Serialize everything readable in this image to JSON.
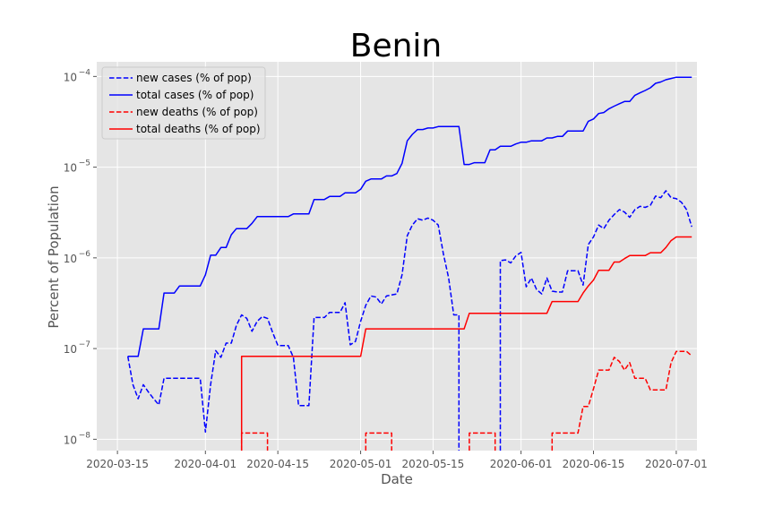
{
  "chart_data": {
    "type": "line",
    "title": "Benin",
    "xlabel": "Date",
    "ylabel": "Percent of Population",
    "yscale": "log",
    "ylim": [
      7.5e-09,
      0.000145
    ],
    "xlim": [
      "2020-03-11",
      "2020-07-05"
    ],
    "x_ticks": [
      "2020-03-15",
      "2020-04-01",
      "2020-04-15",
      "2020-05-01",
      "2020-05-15",
      "2020-06-01",
      "2020-06-15",
      "2020-07-01"
    ],
    "y_ticks": [
      {
        "value": 1e-08,
        "base": "10",
        "exp": "−8"
      },
      {
        "value": 1e-07,
        "base": "10",
        "exp": "−7"
      },
      {
        "value": 1e-06,
        "base": "10",
        "exp": "−6"
      },
      {
        "value": 1e-05,
        "base": "10",
        "exp": "−5"
      },
      {
        "value": 0.0001,
        "base": "10",
        "exp": "−4"
      }
    ],
    "grid": true,
    "legend_position": "top-left",
    "series": [
      {
        "name": "new cases (% of pop)",
        "color": "#0000ff",
        "dash": "dashed",
        "points": [
          [
            "2020-03-17",
            8.2e-08
          ],
          [
            "2020-03-18",
            4e-08
          ],
          [
            "2020-03-19",
            2.8e-08
          ],
          [
            "2020-03-20",
            4e-08
          ],
          [
            "2020-03-21",
            3.3e-08
          ],
          [
            "2020-03-22",
            2.8e-08
          ],
          [
            "2020-03-23",
            2.4e-08
          ],
          [
            "2020-03-24",
            4.7e-08
          ],
          [
            "2020-03-25",
            4.7e-08
          ],
          [
            "2020-03-30",
            4.7e-08
          ],
          [
            "2020-03-31",
            4.7e-08
          ],
          [
            "2020-04-01",
            1.2e-08
          ],
          [
            "2020-04-02",
            4e-08
          ],
          [
            "2020-04-03",
            9.5e-08
          ],
          [
            "2020-04-04",
            8e-08
          ],
          [
            "2020-04-05",
            1.15e-07
          ],
          [
            "2020-04-06",
            1.15e-07
          ],
          [
            "2020-04-07",
            1.8e-07
          ],
          [
            "2020-04-08",
            2.35e-07
          ],
          [
            "2020-04-09",
            2.15e-07
          ],
          [
            "2020-04-10",
            1.55e-07
          ],
          [
            "2020-04-11",
            2e-07
          ],
          [
            "2020-04-12",
            2.25e-07
          ],
          [
            "2020-04-13",
            2.15e-07
          ],
          [
            "2020-04-14",
            1.5e-07
          ],
          [
            "2020-04-15",
            1.08e-07
          ],
          [
            "2020-04-17",
            1.08e-07
          ],
          [
            "2020-04-18",
            8e-08
          ],
          [
            "2020-04-19",
            2.35e-08
          ],
          [
            "2020-04-21",
            2.35e-08
          ],
          [
            "2020-04-22",
            2.2e-07
          ],
          [
            "2020-04-24",
            2.2e-07
          ],
          [
            "2020-04-25",
            2.5e-07
          ],
          [
            "2020-04-27",
            2.5e-07
          ],
          [
            "2020-04-28",
            3.2e-07
          ],
          [
            "2020-04-29",
            1.1e-07
          ],
          [
            "2020-04-30",
            1.2e-07
          ],
          [
            "2020-05-01",
            2e-07
          ],
          [
            "2020-05-02",
            3e-07
          ],
          [
            "2020-05-03",
            3.8e-07
          ],
          [
            "2020-05-04",
            3.7e-07
          ],
          [
            "2020-05-05",
            3.1e-07
          ],
          [
            "2020-05-06",
            3.8e-07
          ],
          [
            "2020-05-08",
            4e-07
          ],
          [
            "2020-05-09",
            6.5e-07
          ],
          [
            "2020-05-10",
            1.75e-06
          ],
          [
            "2020-05-11",
            2.3e-06
          ],
          [
            "2020-05-12",
            2.7e-06
          ],
          [
            "2020-05-13",
            2.6e-06
          ],
          [
            "2020-05-14",
            2.75e-06
          ],
          [
            "2020-05-15",
            2.6e-06
          ],
          [
            "2020-05-16",
            2.3e-06
          ],
          [
            "2020-05-17",
            1.1e-06
          ],
          [
            "2020-05-18",
            6e-07
          ],
          [
            "2020-05-19",
            2.35e-07
          ],
          [
            "2020-05-20",
            2.35e-07
          ],
          [
            "2020-05-20",
            7.5e-09
          ]
        ],
        "points2": [
          [
            "2020-05-28",
            7.5e-09
          ],
          [
            "2020-05-28",
            9.3e-07
          ],
          [
            "2020-05-29",
            9.5e-07
          ],
          [
            "2020-05-30",
            8.8e-07
          ],
          [
            "2020-05-31",
            1.05e-06
          ],
          [
            "2020-06-01",
            1.15e-06
          ],
          [
            "2020-06-02",
            4.8e-07
          ],
          [
            "2020-06-03",
            6e-07
          ],
          [
            "2020-06-04",
            4.5e-07
          ],
          [
            "2020-06-05",
            4e-07
          ],
          [
            "2020-06-06",
            6e-07
          ],
          [
            "2020-06-07",
            4.3e-07
          ],
          [
            "2020-06-08",
            4.2e-07
          ],
          [
            "2020-06-09",
            4.2e-07
          ],
          [
            "2020-06-10",
            7.2e-07
          ],
          [
            "2020-06-12",
            7.2e-07
          ],
          [
            "2020-06-13",
            5e-07
          ],
          [
            "2020-06-14",
            1.4e-06
          ],
          [
            "2020-06-15",
            1.7e-06
          ],
          [
            "2020-06-16",
            2.3e-06
          ],
          [
            "2020-06-17",
            2.1e-06
          ],
          [
            "2020-06-18",
            2.6e-06
          ],
          [
            "2020-06-19",
            3e-06
          ],
          [
            "2020-06-20",
            3.4e-06
          ],
          [
            "2020-06-21",
            3.2e-06
          ],
          [
            "2020-06-22",
            2.8e-06
          ],
          [
            "2020-06-23",
            3.4e-06
          ],
          [
            "2020-06-24",
            3.7e-06
          ],
          [
            "2020-06-25",
            3.6e-06
          ],
          [
            "2020-06-26",
            3.8e-06
          ],
          [
            "2020-06-27",
            4.8e-06
          ],
          [
            "2020-06-28",
            4.6e-06
          ],
          [
            "2020-06-29",
            5.5e-06
          ],
          [
            "2020-06-30",
            4.6e-06
          ],
          [
            "2020-07-01",
            4.5e-06
          ],
          [
            "2020-07-02",
            4.1e-06
          ],
          [
            "2020-07-03",
            3.4e-06
          ],
          [
            "2020-07-04",
            2.2e-06
          ]
        ]
      },
      {
        "name": "total cases (% of pop)",
        "color": "#0000ff",
        "dash": "solid",
        "points": [
          [
            "2020-03-17",
            8.2e-08
          ],
          [
            "2020-03-19",
            8.2e-08
          ],
          [
            "2020-03-20",
            1.65e-07
          ],
          [
            "2020-03-23",
            1.65e-07
          ],
          [
            "2020-03-24",
            4.1e-07
          ],
          [
            "2020-03-26",
            4.1e-07
          ],
          [
            "2020-03-27",
            4.9e-07
          ],
          [
            "2020-03-31",
            4.9e-07
          ],
          [
            "2020-04-01",
            6.5e-07
          ],
          [
            "2020-04-02",
            1.07e-06
          ],
          [
            "2020-04-03",
            1.07e-06
          ],
          [
            "2020-04-04",
            1.3e-06
          ],
          [
            "2020-04-05",
            1.3e-06
          ],
          [
            "2020-04-06",
            1.8e-06
          ],
          [
            "2020-04-07",
            2.1e-06
          ],
          [
            "2020-04-09",
            2.1e-06
          ],
          [
            "2020-04-10",
            2.4e-06
          ],
          [
            "2020-04-11",
            2.85e-06
          ],
          [
            "2020-04-17",
            2.85e-06
          ],
          [
            "2020-04-18",
            3.05e-06
          ],
          [
            "2020-04-21",
            3.05e-06
          ],
          [
            "2020-04-22",
            4.4e-06
          ],
          [
            "2020-04-24",
            4.4e-06
          ],
          [
            "2020-04-25",
            4.75e-06
          ],
          [
            "2020-04-27",
            4.75e-06
          ],
          [
            "2020-04-28",
            5.2e-06
          ],
          [
            "2020-04-30",
            5.2e-06
          ],
          [
            "2020-05-01",
            5.7e-06
          ],
          [
            "2020-05-02",
            7e-06
          ],
          [
            "2020-05-03",
            7.4e-06
          ],
          [
            "2020-05-05",
            7.4e-06
          ],
          [
            "2020-05-06",
            8e-06
          ],
          [
            "2020-05-07",
            8e-06
          ],
          [
            "2020-05-08",
            8.5e-06
          ],
          [
            "2020-05-09",
            1.1e-05
          ],
          [
            "2020-05-10",
            1.95e-05
          ],
          [
            "2020-05-11",
            2.3e-05
          ],
          [
            "2020-05-12",
            2.6e-05
          ],
          [
            "2020-05-13",
            2.6e-05
          ],
          [
            "2020-05-14",
            2.7e-05
          ],
          [
            "2020-05-15",
            2.7e-05
          ],
          [
            "2020-05-16",
            2.8e-05
          ],
          [
            "2020-05-20",
            2.8e-05
          ],
          [
            "2020-05-21",
            1.07e-05
          ],
          [
            "2020-05-22",
            1.07e-05
          ],
          [
            "2020-05-23",
            1.12e-05
          ],
          [
            "2020-05-25",
            1.12e-05
          ],
          [
            "2020-05-26",
            1.55e-05
          ],
          [
            "2020-05-27",
            1.55e-05
          ],
          [
            "2020-05-28",
            1.7e-05
          ],
          [
            "2020-05-30",
            1.7e-05
          ],
          [
            "2020-05-31",
            1.8e-05
          ],
          [
            "2020-06-01",
            1.88e-05
          ],
          [
            "2020-06-02",
            1.88e-05
          ],
          [
            "2020-06-03",
            1.95e-05
          ],
          [
            "2020-06-05",
            1.95e-05
          ],
          [
            "2020-06-06",
            2.1e-05
          ],
          [
            "2020-06-07",
            2.1e-05
          ],
          [
            "2020-06-08",
            2.18e-05
          ],
          [
            "2020-06-09",
            2.18e-05
          ],
          [
            "2020-06-10",
            2.5e-05
          ],
          [
            "2020-06-13",
            2.5e-05
          ],
          [
            "2020-06-14",
            3.2e-05
          ],
          [
            "2020-06-15",
            3.4e-05
          ],
          [
            "2020-06-16",
            3.9e-05
          ],
          [
            "2020-06-17",
            4e-05
          ],
          [
            "2020-06-18",
            4.4e-05
          ],
          [
            "2020-06-19",
            4.7e-05
          ],
          [
            "2020-06-20",
            5e-05
          ],
          [
            "2020-06-21",
            5.3e-05
          ],
          [
            "2020-06-22",
            5.3e-05
          ],
          [
            "2020-06-23",
            6.2e-05
          ],
          [
            "2020-06-24",
            6.6e-05
          ],
          [
            "2020-06-25",
            7e-05
          ],
          [
            "2020-06-26",
            7.5e-05
          ],
          [
            "2020-06-27",
            8.4e-05
          ],
          [
            "2020-06-28",
            8.7e-05
          ],
          [
            "2020-06-29",
            9.2e-05
          ],
          [
            "2020-06-30",
            9.5e-05
          ],
          [
            "2020-07-01",
            9.8e-05
          ],
          [
            "2020-07-04",
            9.8e-05
          ]
        ]
      },
      {
        "name": "new deaths (% of pop)",
        "color": "#ff0000",
        "dash": "dashed",
        "segments": [
          [
            [
              "2020-04-08",
              7.5e-09
            ],
            [
              "2020-04-08",
              1.17e-08
            ],
            [
              "2020-04-13",
              1.17e-08
            ],
            [
              "2020-04-13",
              7.5e-09
            ]
          ],
          [
            [
              "2020-05-02",
              7.5e-09
            ],
            [
              "2020-05-02",
              1.17e-08
            ],
            [
              "2020-05-07",
              1.17e-08
            ],
            [
              "2020-05-07",
              7.5e-09
            ]
          ],
          [
            [
              "2020-05-22",
              7.5e-09
            ],
            [
              "2020-05-22",
              1.17e-08
            ],
            [
              "2020-05-27",
              1.17e-08
            ],
            [
              "2020-05-27",
              7.5e-09
            ]
          ],
          [
            [
              "2020-06-07",
              7.5e-09
            ],
            [
              "2020-06-07",
              1.17e-08
            ],
            [
              "2020-06-12",
              1.17e-08
            ],
            [
              "2020-06-13",
              2.3e-08
            ],
            [
              "2020-06-14",
              2.3e-08
            ],
            [
              "2020-06-15",
              3.6e-08
            ],
            [
              "2020-06-16",
              5.8e-08
            ],
            [
              "2020-06-18",
              5.8e-08
            ],
            [
              "2020-06-19",
              8e-08
            ],
            [
              "2020-06-20",
              7.2e-08
            ],
            [
              "2020-06-21",
              5.8e-08
            ],
            [
              "2020-06-22",
              7e-08
            ],
            [
              "2020-06-23",
              4.7e-08
            ],
            [
              "2020-06-25",
              4.7e-08
            ],
            [
              "2020-06-26",
              3.5e-08
            ],
            [
              "2020-06-29",
              3.5e-08
            ],
            [
              "2020-06-30",
              7e-08
            ],
            [
              "2020-07-01",
              9.3e-08
            ],
            [
              "2020-07-03",
              9.3e-08
            ],
            [
              "2020-07-04",
              8.3e-08
            ]
          ]
        ]
      },
      {
        "name": "total deaths (% of pop)",
        "color": "#ff0000",
        "dash": "solid",
        "points": [
          [
            "2020-04-08",
            7.5e-09
          ],
          [
            "2020-04-08",
            8.2e-08
          ],
          [
            "2020-05-01",
            8.2e-08
          ],
          [
            "2020-05-02",
            1.65e-07
          ],
          [
            "2020-05-21",
            1.65e-07
          ],
          [
            "2020-05-22",
            2.45e-07
          ],
          [
            "2020-06-06",
            2.45e-07
          ],
          [
            "2020-06-07",
            3.3e-07
          ],
          [
            "2020-06-12",
            3.3e-07
          ],
          [
            "2020-06-13",
            4.1e-07
          ],
          [
            "2020-06-14",
            4.9e-07
          ],
          [
            "2020-06-15",
            5.7e-07
          ],
          [
            "2020-06-16",
            7.3e-07
          ],
          [
            "2020-06-18",
            7.3e-07
          ],
          [
            "2020-06-19",
            9e-07
          ],
          [
            "2020-06-20",
            9e-07
          ],
          [
            "2020-06-21",
            9.8e-07
          ],
          [
            "2020-06-22",
            1.06e-06
          ],
          [
            "2020-06-25",
            1.06e-06
          ],
          [
            "2020-06-26",
            1.14e-06
          ],
          [
            "2020-06-28",
            1.14e-06
          ],
          [
            "2020-06-29",
            1.3e-06
          ],
          [
            "2020-06-30",
            1.55e-06
          ],
          [
            "2020-07-01",
            1.7e-06
          ],
          [
            "2020-07-04",
            1.7e-06
          ]
        ]
      }
    ]
  }
}
